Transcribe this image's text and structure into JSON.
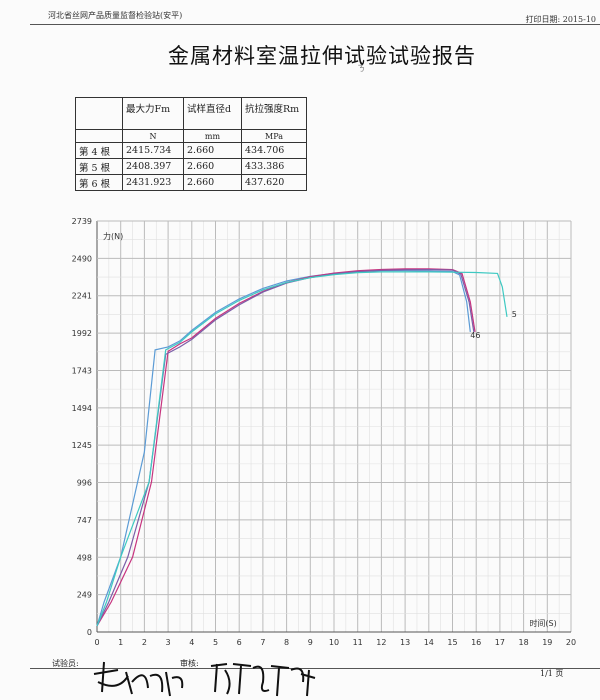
{
  "header": {
    "org": "河北省丝网产品质量监督检验站(安平)",
    "print_date": "打印日期: 2015-10"
  },
  "title": "金属材料室温拉伸试验试验报告",
  "pen_mark": "ㄋ",
  "table": {
    "col_headers": [
      "最大力Fm",
      "试样直径d",
      "抗拉强度Rm"
    ],
    "units": [
      "N",
      "mm",
      "MPa"
    ],
    "rows": [
      {
        "label": "第 4 根",
        "fm": "2415.734",
        "d": "2.660",
        "rm": "434.706"
      },
      {
        "label": "第 5 根",
        "fm": "2408.397",
        "d": "2.660",
        "rm": "433.386"
      },
      {
        "label": "第 6 根",
        "fm": "2431.923",
        "d": "2.660",
        "rm": "437.620"
      }
    ]
  },
  "chart_data": {
    "type": "line",
    "ylabel": "力(N)",
    "xlabel": "时间(S)",
    "xlim": [
      0,
      20
    ],
    "ylim": [
      0,
      2739
    ],
    "x_ticks": [
      "0",
      "1",
      "2",
      "3",
      "4",
      "5",
      "6",
      "7",
      "8",
      "9",
      "10",
      "11",
      "12",
      "13",
      "14",
      "15",
      "16",
      "17",
      "18",
      "19",
      "20"
    ],
    "y_ticks": [
      "0",
      "249",
      "498",
      "747",
      "996",
      "1245",
      "1494",
      "1743",
      "1992",
      "2241",
      "2490",
      "2739"
    ],
    "grid": true,
    "curve_labels": [
      "46",
      "5"
    ],
    "series": [
      {
        "color": "#5b9bd5",
        "points": [
          [
            0,
            40
          ],
          [
            0.3,
            200
          ],
          [
            1,
            500
          ],
          [
            2,
            1200
          ],
          [
            2.45,
            1880
          ],
          [
            3,
            1900
          ],
          [
            3.5,
            1940
          ],
          [
            4,
            2010
          ],
          [
            5,
            2130
          ],
          [
            6,
            2220
          ],
          [
            7,
            2290
          ],
          [
            8,
            2340
          ],
          [
            9,
            2370
          ],
          [
            10,
            2390
          ],
          [
            11,
            2402
          ],
          [
            12,
            2408
          ],
          [
            13,
            2408
          ],
          [
            14,
            2405
          ],
          [
            15,
            2402
          ],
          [
            15.3,
            2380
          ],
          [
            15.6,
            2200
          ],
          [
            15.75,
            2000
          ]
        ]
      },
      {
        "color": "#c7347f",
        "points": [
          [
            0,
            40
          ],
          [
            0.6,
            200
          ],
          [
            1.5,
            500
          ],
          [
            2.3,
            1000
          ],
          [
            3,
            1870
          ],
          [
            3.5,
            1920
          ],
          [
            4,
            1960
          ],
          [
            5,
            2090
          ],
          [
            6,
            2190
          ],
          [
            7,
            2270
          ],
          [
            8,
            2330
          ],
          [
            9,
            2368
          ],
          [
            10,
            2392
          ],
          [
            11,
            2408
          ],
          [
            12,
            2416
          ],
          [
            13,
            2420
          ],
          [
            14,
            2420
          ],
          [
            15,
            2415
          ],
          [
            15.4,
            2390
          ],
          [
            15.75,
            2200
          ],
          [
            15.95,
            2000
          ]
        ]
      },
      {
        "color": "#7b5ea8",
        "points": [
          [
            0,
            40
          ],
          [
            0.5,
            200
          ],
          [
            1.3,
            500
          ],
          [
            2.2,
            1000
          ],
          [
            2.9,
            1850
          ],
          [
            3.5,
            1900
          ],
          [
            4,
            1950
          ],
          [
            5,
            2080
          ],
          [
            6,
            2180
          ],
          [
            7,
            2265
          ],
          [
            8,
            2325
          ],
          [
            9,
            2362
          ],
          [
            10,
            2387
          ],
          [
            11,
            2402
          ],
          [
            12,
            2410
          ],
          [
            13,
            2414
          ],
          [
            14,
            2415
          ],
          [
            15,
            2412
          ],
          [
            15.35,
            2385
          ],
          [
            15.7,
            2200
          ],
          [
            15.9,
            2000
          ]
        ]
      },
      {
        "color": "#3ec9c2",
        "points": [
          [
            0,
            40
          ],
          [
            0.4,
            200
          ],
          [
            1,
            500
          ],
          [
            2.2,
            1000
          ],
          [
            2.9,
            1880
          ],
          [
            3.5,
            1930
          ],
          [
            4,
            2000
          ],
          [
            5,
            2120
          ],
          [
            6,
            2210
          ],
          [
            7,
            2280
          ],
          [
            8,
            2330
          ],
          [
            9,
            2362
          ],
          [
            10,
            2382
          ],
          [
            11,
            2395
          ],
          [
            12,
            2400
          ],
          [
            13,
            2400
          ],
          [
            14,
            2400
          ],
          [
            15,
            2398
          ],
          [
            16,
            2396
          ],
          [
            16.9,
            2390
          ],
          [
            17.1,
            2300
          ],
          [
            17.3,
            2100
          ]
        ]
      }
    ]
  },
  "footer": {
    "inspector_label": "试验员:",
    "reviewer_label": "审核:",
    "page": "1/1 页"
  }
}
